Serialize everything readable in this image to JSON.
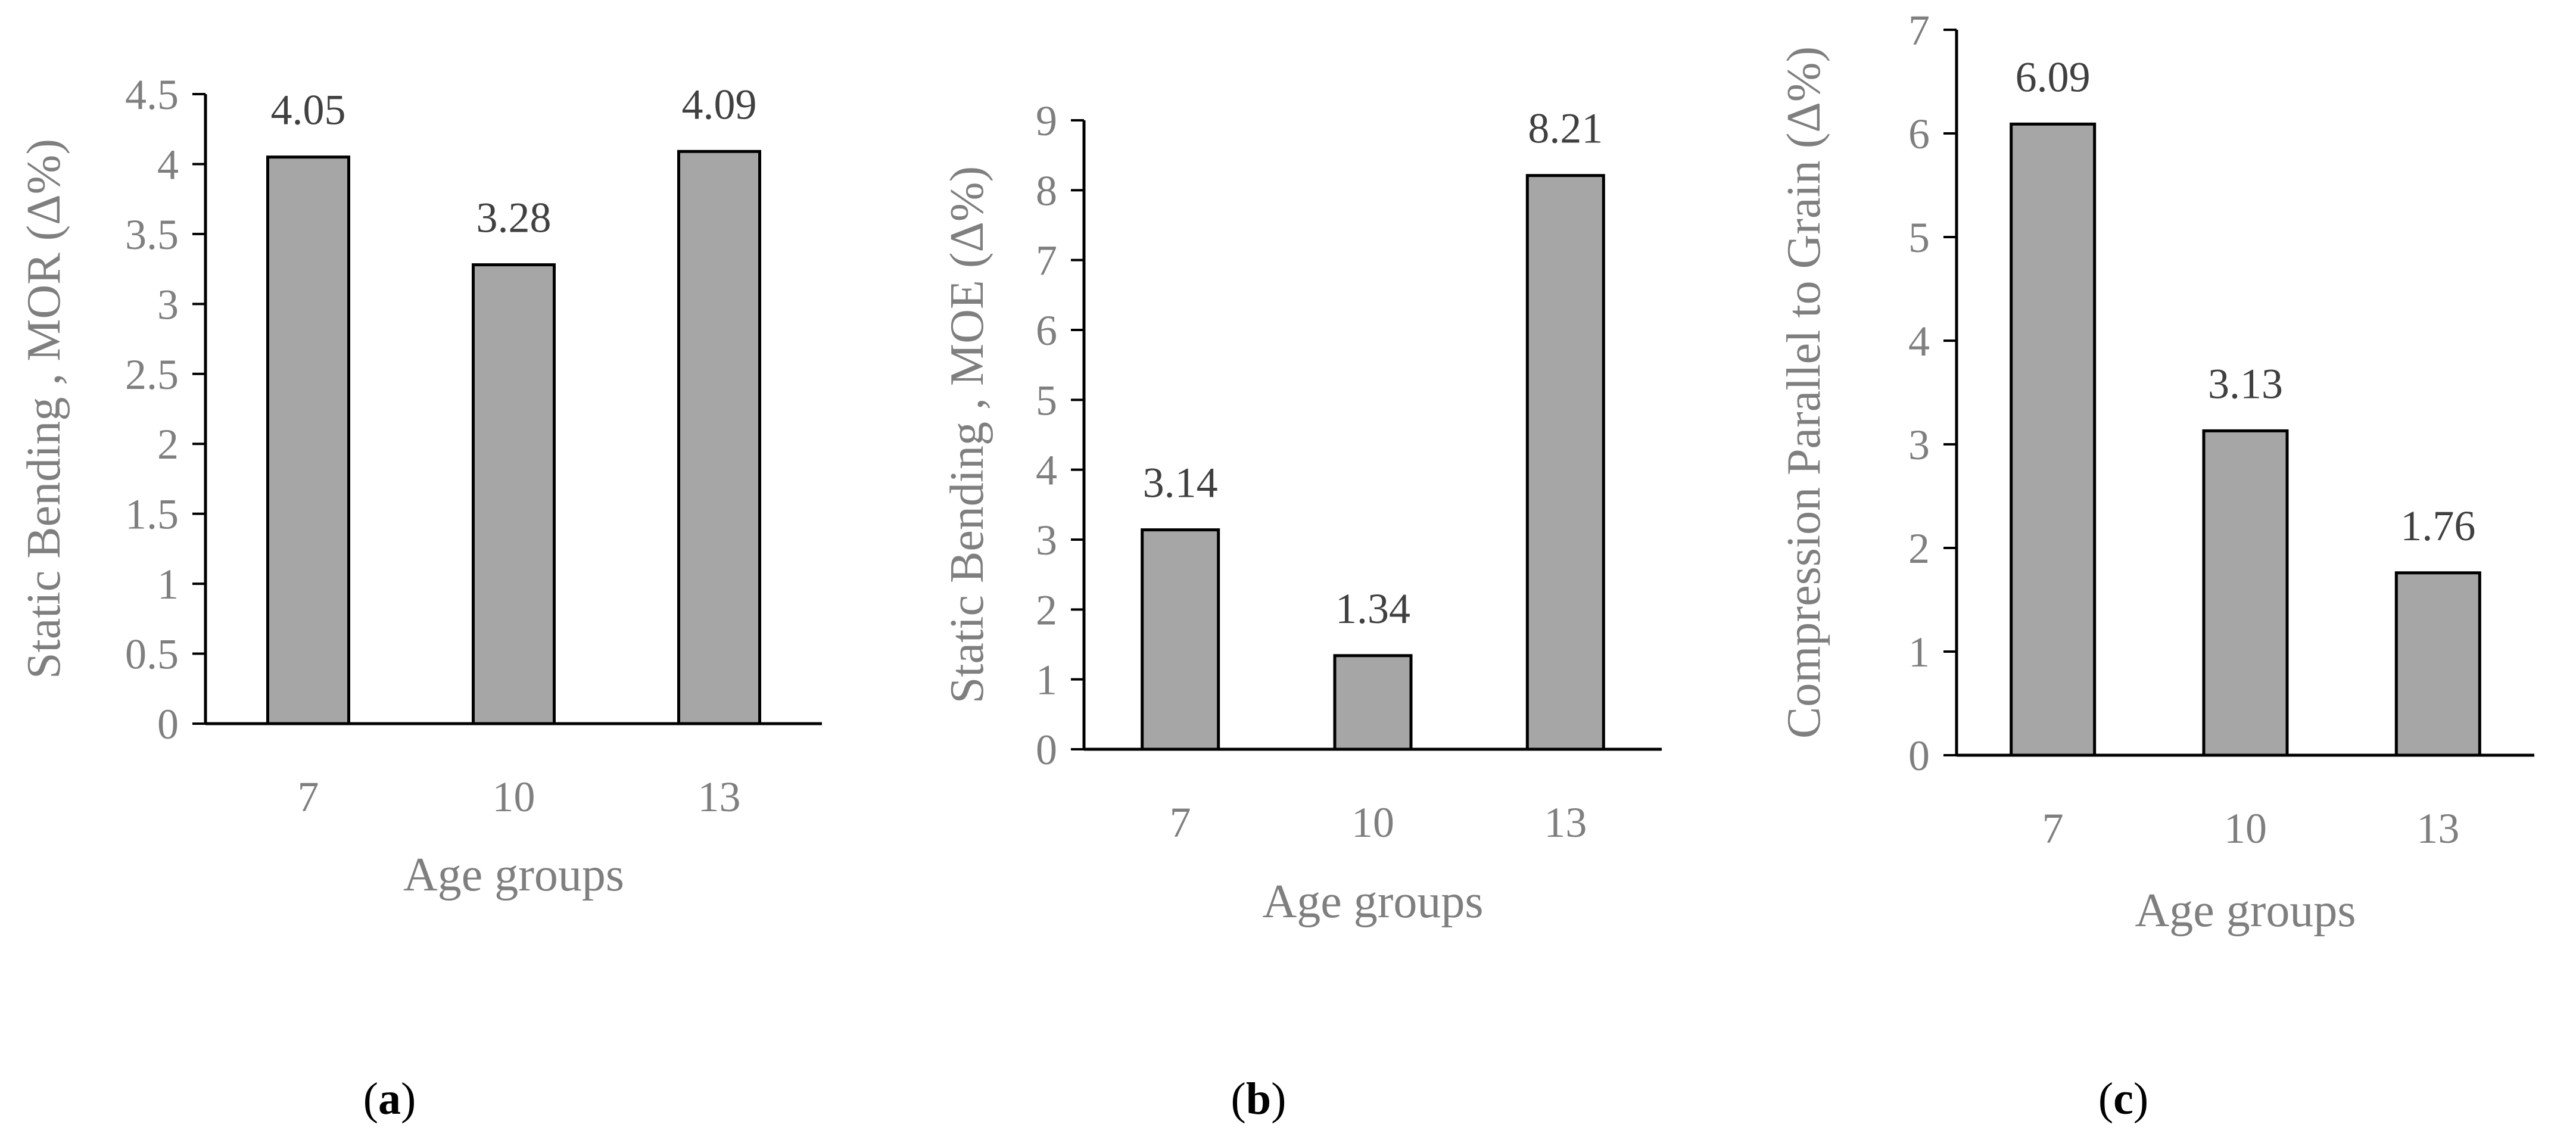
{
  "chart_data": [
    {
      "type": "bar",
      "panel_label": "a",
      "categories": [
        "7",
        "10",
        "13"
      ],
      "values": [
        4.05,
        3.28,
        4.09
      ],
      "data_labels": [
        "4.05",
        "3.28",
        "4.09"
      ],
      "xlabel": "Age groups",
      "ylabel": "Static Bending , MOR (Δ%)",
      "ylim": [
        0,
        4.5
      ],
      "y_ticks": [
        "0",
        "0.5",
        "1",
        "1.5",
        "2",
        "2.5",
        "3",
        "3.5",
        "4",
        "4.5"
      ],
      "grid": false
    },
    {
      "type": "bar",
      "panel_label": "b",
      "categories": [
        "7",
        "10",
        "13"
      ],
      "values": [
        3.14,
        1.34,
        8.21
      ],
      "data_labels": [
        "3.14",
        "1.34",
        "8.21"
      ],
      "xlabel": "Age groups",
      "ylabel": "Static Bending , MOE (Δ%)",
      "ylim": [
        0,
        9
      ],
      "y_ticks": [
        "0",
        "1",
        "2",
        "3",
        "4",
        "5",
        "6",
        "7",
        "8",
        "9"
      ],
      "grid": false
    },
    {
      "type": "bar",
      "panel_label": "c",
      "categories": [
        "7",
        "10",
        "13"
      ],
      "values": [
        6.09,
        3.13,
        1.76
      ],
      "data_labels": [
        "6.09",
        "3.13",
        "1.76"
      ],
      "xlabel": "Age groups",
      "ylabel": "Compression Parallel to Grain (Δ%)",
      "ylim": [
        0,
        7
      ],
      "y_ticks": [
        "0",
        "1",
        "2",
        "3",
        "4",
        "5",
        "6",
        "7"
      ],
      "grid": false
    }
  ]
}
